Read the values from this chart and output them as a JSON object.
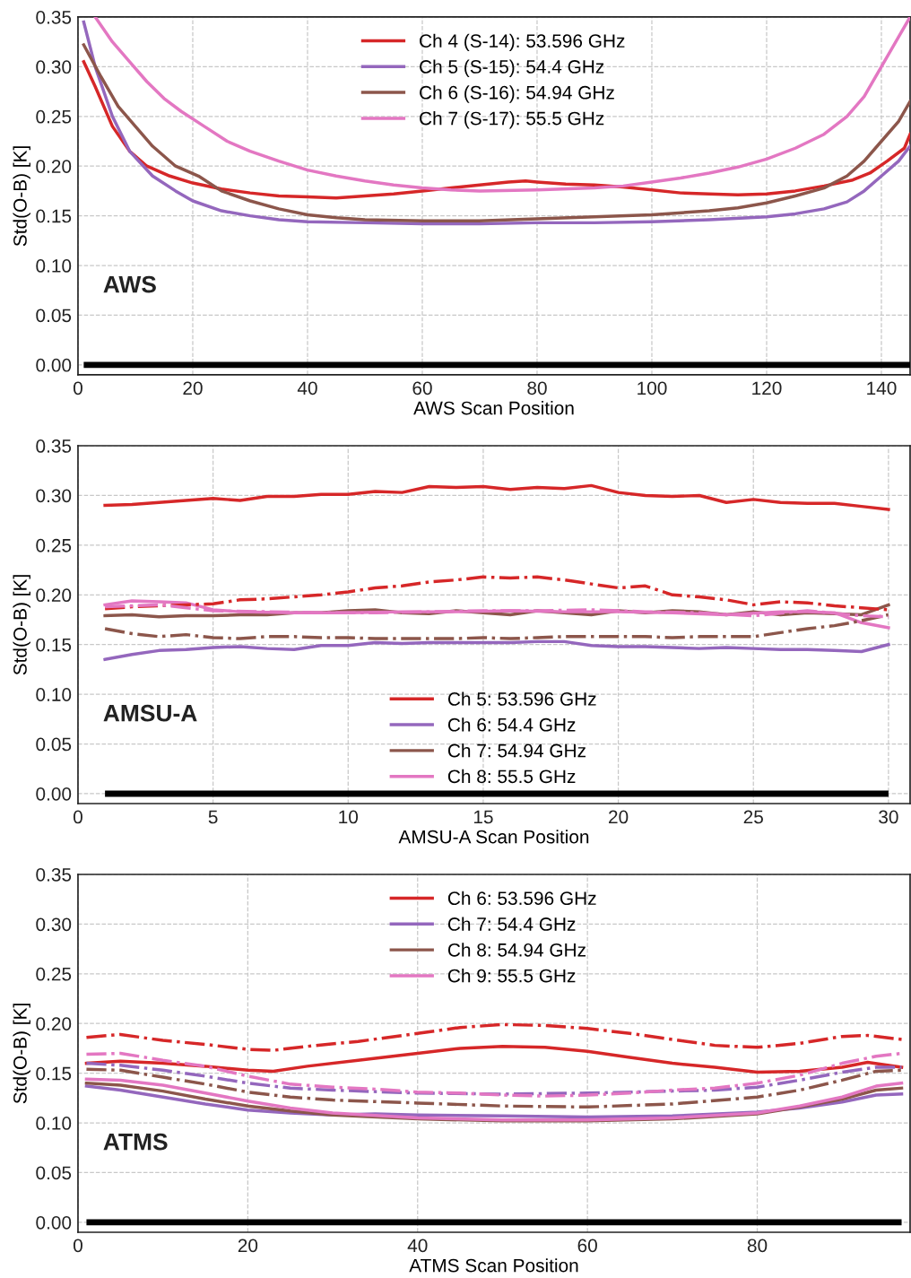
{
  "chart_data": [
    {
      "type": "line",
      "xlabel": "AWS Scan Position",
      "ylabel": "Std(O-B) [K]",
      "annotations": [
        "AWS"
      ],
      "xlim": [
        0,
        145
      ],
      "ylim": [
        -0.01,
        0.35
      ],
      "xticks": [
        0,
        20,
        40,
        60,
        80,
        100,
        120,
        140
      ],
      "yticks": [
        {
          "value": 0,
          "label": "0.00"
        },
        {
          "value": 0.05,
          "label": "0.05"
        },
        {
          "value": 0.1,
          "label": "0.10"
        },
        {
          "value": 0.15,
          "label": "0.15"
        },
        {
          "value": 0.2,
          "label": "0.20"
        },
        {
          "value": 0.25,
          "label": "0.25"
        },
        {
          "value": 0.3,
          "label": "0.30"
        },
        {
          "value": 0.35,
          "label": "0.35"
        }
      ],
      "grid": true,
      "legend": "top center",
      "line_style": "solid",
      "marker": "none",
      "ref_lines": [
        {
          "axis": "y",
          "value": 0,
          "color": "#000000"
        }
      ],
      "series": [
        {
          "name": "Ch 4 (S-14): 53.596 GHz",
          "color": "#d62728",
          "x": [
            1,
            3,
            6,
            9,
            12,
            16,
            20,
            25,
            30,
            35,
            40,
            45,
            50,
            55,
            60,
            65,
            70,
            75,
            78,
            80,
            85,
            90,
            95,
            100,
            105,
            110,
            115,
            120,
            125,
            130,
            135,
            138,
            141,
            144,
            145
          ],
          "values": [
            0.305,
            0.28,
            0.24,
            0.215,
            0.2,
            0.19,
            0.183,
            0.177,
            0.173,
            0.17,
            0.169,
            0.168,
            0.17,
            0.172,
            0.175,
            0.178,
            0.181,
            0.184,
            0.185,
            0.184,
            0.182,
            0.181,
            0.179,
            0.176,
            0.173,
            0.172,
            0.171,
            0.172,
            0.175,
            0.18,
            0.186,
            0.193,
            0.205,
            0.218,
            0.232
          ]
        },
        {
          "name": "Ch 5 (S-15): 54.4 GHz",
          "color": "#9467bd",
          "x": [
            1,
            3,
            6,
            9,
            13,
            17,
            20,
            25,
            30,
            35,
            40,
            50,
            60,
            70,
            80,
            90,
            100,
            110,
            120,
            125,
            130,
            134,
            137,
            140,
            143,
            145
          ],
          "values": [
            0.345,
            0.3,
            0.25,
            0.215,
            0.19,
            0.175,
            0.165,
            0.155,
            0.15,
            0.146,
            0.144,
            0.143,
            0.142,
            0.142,
            0.143,
            0.143,
            0.144,
            0.146,
            0.149,
            0.152,
            0.157,
            0.164,
            0.175,
            0.19,
            0.205,
            0.22
          ]
        },
        {
          "name": "Ch 6 (S-16): 54.94 GHz",
          "color": "#8c564b",
          "x": [
            1,
            4,
            7,
            10,
            13,
            17,
            21,
            25,
            30,
            35,
            40,
            45,
            50,
            60,
            70,
            80,
            90,
            100,
            110,
            115,
            120,
            125,
            130,
            134,
            137,
            140,
            143,
            145
          ],
          "values": [
            0.322,
            0.29,
            0.26,
            0.24,
            0.22,
            0.2,
            0.19,
            0.175,
            0.165,
            0.157,
            0.151,
            0.148,
            0.146,
            0.145,
            0.145,
            0.147,
            0.149,
            0.151,
            0.155,
            0.158,
            0.163,
            0.17,
            0.178,
            0.19,
            0.205,
            0.225,
            0.245,
            0.265
          ]
        },
        {
          "name": "Ch 7 (S-17): 55.5 GHz",
          "color": "#e377c2",
          "x": [
            3,
            6,
            9,
            12,
            15,
            18,
            22,
            26,
            30,
            35,
            40,
            45,
            50,
            55,
            60,
            65,
            70,
            80,
            90,
            95,
            100,
            105,
            110,
            115,
            120,
            125,
            130,
            134,
            137,
            140,
            143,
            145
          ],
          "values": [
            0.35,
            0.325,
            0.305,
            0.285,
            0.268,
            0.255,
            0.24,
            0.225,
            0.215,
            0.205,
            0.196,
            0.19,
            0.185,
            0.181,
            0.178,
            0.176,
            0.175,
            0.176,
            0.178,
            0.18,
            0.184,
            0.188,
            0.193,
            0.199,
            0.207,
            0.218,
            0.232,
            0.25,
            0.27,
            0.3,
            0.33,
            0.35
          ]
        }
      ]
    },
    {
      "type": "line",
      "xlabel": "AMSU-A Scan Position",
      "ylabel": "Std(O-B) [K]",
      "annotations": [
        "AMSU-A"
      ],
      "xlim": [
        0,
        30.8
      ],
      "ylim": [
        -0.01,
        0.35
      ],
      "xticks": [
        0,
        5,
        10,
        15,
        20,
        25,
        30
      ],
      "yticks": [
        {
          "value": 0,
          "label": "0.00"
        },
        {
          "value": 0.05,
          "label": "0.05"
        },
        {
          "value": 0.1,
          "label": "0.10"
        },
        {
          "value": 0.15,
          "label": "0.15"
        },
        {
          "value": 0.2,
          "label": "0.20"
        },
        {
          "value": 0.25,
          "label": "0.25"
        },
        {
          "value": 0.3,
          "label": "0.30"
        },
        {
          "value": 0.35,
          "label": "0.35"
        }
      ],
      "grid": true,
      "legend": "bottom center",
      "line_style": "solid",
      "marker": "none",
      "ref_lines": [
        {
          "axis": "y",
          "value": 0,
          "color": "#000000"
        }
      ],
      "series": [
        {
          "name": "Ch 5: 53.596 GHz",
          "color": "#d62728",
          "x": [
            1,
            2,
            3,
            4,
            5,
            6,
            7,
            8,
            9,
            10,
            11,
            12,
            13,
            14,
            15,
            16,
            17,
            18,
            19,
            20,
            21,
            22,
            23,
            24,
            25,
            26,
            27,
            28,
            29,
            30
          ],
          "values": [
            0.29,
            0.291,
            0.293,
            0.295,
            0.297,
            0.295,
            0.299,
            0.299,
            0.301,
            0.301,
            0.304,
            0.303,
            0.309,
            0.308,
            0.309,
            0.306,
            0.308,
            0.307,
            0.31,
            0.303,
            0.3,
            0.299,
            0.3,
            0.293,
            0.296,
            0.293,
            0.292,
            0.292,
            0.289,
            0.286
          ]
        },
        {
          "name": "Ch 6: 54.4 GHz",
          "color": "#9467bd",
          "x": [
            1,
            2,
            3,
            4,
            5,
            6,
            7,
            8,
            9,
            10,
            11,
            12,
            13,
            14,
            15,
            16,
            17,
            18,
            19,
            20,
            21,
            22,
            23,
            24,
            25,
            26,
            27,
            28,
            29,
            30
          ],
          "values": [
            0.135,
            0.14,
            0.144,
            0.145,
            0.147,
            0.148,
            0.146,
            0.145,
            0.149,
            0.149,
            0.152,
            0.151,
            0.152,
            0.152,
            0.152,
            0.152,
            0.153,
            0.153,
            0.149,
            0.148,
            0.148,
            0.147,
            0.146,
            0.147,
            0.146,
            0.145,
            0.145,
            0.144,
            0.143,
            0.15
          ]
        },
        {
          "name": "Ch 7: 54.94 GHz",
          "color": "#8c564b",
          "x": [
            1,
            2,
            3,
            4,
            5,
            6,
            7,
            8,
            9,
            10,
            11,
            12,
            13,
            14,
            15,
            16,
            17,
            18,
            19,
            20,
            21,
            22,
            23,
            24,
            25,
            26,
            27,
            28,
            29,
            30
          ],
          "values": [
            0.179,
            0.18,
            0.178,
            0.179,
            0.179,
            0.18,
            0.18,
            0.182,
            0.182,
            0.184,
            0.185,
            0.182,
            0.181,
            0.184,
            0.182,
            0.18,
            0.184,
            0.182,
            0.18,
            0.184,
            0.182,
            0.184,
            0.183,
            0.18,
            0.183,
            0.18,
            0.182,
            0.181,
            0.18,
            0.19
          ]
        },
        {
          "name": "Ch 8: 55.5 GHz",
          "color": "#e377c2",
          "x": [
            1,
            2,
            3,
            4,
            5,
            6,
            8,
            10,
            12,
            14,
            16,
            18,
            20,
            22,
            24,
            26,
            27,
            28,
            29,
            30
          ],
          "values": [
            0.19,
            0.194,
            0.193,
            0.192,
            0.185,
            0.183,
            0.182,
            0.182,
            0.183,
            0.183,
            0.184,
            0.183,
            0.183,
            0.182,
            0.18,
            0.183,
            0.183,
            0.182,
            0.172,
            0.167
          ]
        },
        {
          "color": "#d62728",
          "line_style": "dashdot",
          "x": [
            1,
            2,
            3,
            4,
            5,
            6,
            7,
            8,
            9,
            10,
            11,
            12,
            13,
            14,
            15,
            16,
            17,
            18,
            19,
            20,
            21,
            22,
            23,
            24,
            25,
            26,
            27,
            28,
            29,
            30
          ],
          "values": [
            0.186,
            0.188,
            0.189,
            0.19,
            0.191,
            0.195,
            0.196,
            0.198,
            0.2,
            0.203,
            0.207,
            0.209,
            0.213,
            0.215,
            0.218,
            0.217,
            0.218,
            0.215,
            0.211,
            0.207,
            0.209,
            0.2,
            0.198,
            0.195,
            0.19,
            0.193,
            0.192,
            0.189,
            0.187,
            0.185
          ]
        },
        {
          "color": "#8c564b",
          "line_style": "dashdot",
          "x": [
            1,
            2,
            3,
            4,
            5,
            6,
            7,
            8,
            9,
            10,
            11,
            12,
            13,
            14,
            15,
            16,
            17,
            18,
            19,
            20,
            21,
            22,
            23,
            24,
            25,
            26,
            27,
            28,
            29,
            30
          ],
          "values": [
            0.166,
            0.161,
            0.158,
            0.16,
            0.157,
            0.156,
            0.158,
            0.158,
            0.157,
            0.157,
            0.156,
            0.156,
            0.156,
            0.156,
            0.157,
            0.156,
            0.157,
            0.158,
            0.158,
            0.158,
            0.158,
            0.157,
            0.158,
            0.158,
            0.158,
            0.162,
            0.166,
            0.169,
            0.174,
            0.18
          ]
        },
        {
          "color": "#e377c2",
          "line_style": "dashdot",
          "x": [
            1,
            3,
            5,
            7,
            9,
            11,
            13,
            15,
            17,
            19,
            21,
            23,
            25,
            27,
            29,
            30
          ],
          "values": [
            0.188,
            0.19,
            0.184,
            0.183,
            0.182,
            0.182,
            0.183,
            0.184,
            0.184,
            0.185,
            0.183,
            0.182,
            0.179,
            0.184,
            0.179,
            0.178
          ]
        }
      ]
    },
    {
      "type": "line",
      "xlabel": "ATMS Scan Position",
      "ylabel": "Std(O-B) [K]",
      "annotations": [
        "ATMS"
      ],
      "xlim": [
        0,
        98
      ],
      "ylim": [
        -0.01,
        0.35
      ],
      "xticks": [
        0,
        20,
        40,
        60,
        80
      ],
      "yticks": [
        {
          "value": 0,
          "label": "0.00"
        },
        {
          "value": 0.05,
          "label": "0.05"
        },
        {
          "value": 0.1,
          "label": "0.10"
        },
        {
          "value": 0.15,
          "label": "0.15"
        },
        {
          "value": 0.2,
          "label": "0.20"
        },
        {
          "value": 0.25,
          "label": "0.25"
        },
        {
          "value": 0.3,
          "label": "0.30"
        },
        {
          "value": 0.35,
          "label": "0.35"
        }
      ],
      "grid": true,
      "legend": "top center",
      "line_style": "solid",
      "marker": "none",
      "ref_lines": [
        {
          "axis": "y",
          "value": 0,
          "color": "#000000"
        }
      ],
      "series": [
        {
          "name": "Ch 6: 53.596 GHz",
          "color": "#d62728",
          "x": [
            1,
            5,
            10,
            15,
            20,
            23,
            27,
            33,
            40,
            45,
            50,
            55,
            60,
            65,
            70,
            75,
            80,
            85,
            90,
            93,
            97
          ],
          "values": [
            0.16,
            0.162,
            0.16,
            0.157,
            0.153,
            0.152,
            0.157,
            0.163,
            0.17,
            0.175,
            0.177,
            0.176,
            0.172,
            0.166,
            0.16,
            0.156,
            0.151,
            0.152,
            0.156,
            0.161,
            0.156
          ]
        },
        {
          "name": "Ch 7: 54.4 GHz",
          "color": "#9467bd",
          "x": [
            1,
            5,
            10,
            15,
            20,
            25,
            30,
            35,
            40,
            50,
            60,
            70,
            80,
            85,
            90,
            94,
            97
          ],
          "values": [
            0.137,
            0.133,
            0.126,
            0.119,
            0.113,
            0.11,
            0.108,
            0.109,
            0.108,
            0.107,
            0.106,
            0.107,
            0.111,
            0.115,
            0.121,
            0.128,
            0.129
          ]
        },
        {
          "name": "Ch 8: 54.94 GHz",
          "color": "#8c564b",
          "x": [
            1,
            5,
            10,
            15,
            20,
            25,
            30,
            40,
            50,
            60,
            70,
            80,
            85,
            90,
            94,
            97
          ],
          "values": [
            0.14,
            0.138,
            0.132,
            0.124,
            0.117,
            0.112,
            0.108,
            0.104,
            0.102,
            0.102,
            0.104,
            0.109,
            0.116,
            0.124,
            0.133,
            0.135
          ]
        },
        {
          "name": "Ch 9: 55.5 GHz",
          "color": "#e377c2",
          "x": [
            1,
            5,
            10,
            15,
            20,
            25,
            30,
            40,
            50,
            60,
            70,
            80,
            85,
            90,
            94,
            97
          ],
          "values": [
            0.144,
            0.143,
            0.138,
            0.13,
            0.122,
            0.115,
            0.11,
            0.105,
            0.103,
            0.103,
            0.105,
            0.11,
            0.117,
            0.126,
            0.137,
            0.14
          ]
        },
        {
          "color": "#d62728",
          "line_style": "dashdot",
          "x": [
            1,
            5,
            10,
            15,
            20,
            23,
            27,
            33,
            40,
            45,
            50,
            55,
            60,
            65,
            70,
            75,
            80,
            85,
            90,
            93,
            97
          ],
          "values": [
            0.186,
            0.189,
            0.183,
            0.179,
            0.174,
            0.173,
            0.177,
            0.182,
            0.19,
            0.196,
            0.199,
            0.198,
            0.195,
            0.19,
            0.184,
            0.178,
            0.176,
            0.18,
            0.187,
            0.188,
            0.184
          ]
        },
        {
          "color": "#9467bd",
          "line_style": "dashdot",
          "x": [
            1,
            5,
            10,
            15,
            20,
            25,
            30,
            40,
            50,
            60,
            70,
            75,
            80,
            85,
            90,
            94,
            97
          ],
          "values": [
            0.16,
            0.158,
            0.153,
            0.147,
            0.14,
            0.135,
            0.133,
            0.13,
            0.129,
            0.13,
            0.132,
            0.133,
            0.136,
            0.143,
            0.151,
            0.156,
            0.156
          ]
        },
        {
          "color": "#8c564b",
          "line_style": "dashdot",
          "x": [
            1,
            5,
            10,
            15,
            20,
            25,
            30,
            40,
            50,
            60,
            70,
            80,
            85,
            90,
            94,
            97
          ],
          "values": [
            0.154,
            0.153,
            0.146,
            0.139,
            0.131,
            0.126,
            0.123,
            0.12,
            0.117,
            0.116,
            0.119,
            0.126,
            0.133,
            0.143,
            0.152,
            0.153
          ]
        },
        {
          "color": "#e377c2",
          "line_style": "dashdot",
          "x": [
            1,
            5,
            10,
            15,
            20,
            25,
            30,
            35,
            40,
            45,
            50,
            55,
            60,
            65,
            70,
            75,
            80,
            85,
            90,
            94,
            97
          ],
          "values": [
            0.169,
            0.17,
            0.163,
            0.157,
            0.147,
            0.139,
            0.136,
            0.134,
            0.131,
            0.13,
            0.128,
            0.127,
            0.128,
            0.13,
            0.133,
            0.135,
            0.14,
            0.148,
            0.16,
            0.167,
            0.17
          ]
        }
      ]
    }
  ]
}
